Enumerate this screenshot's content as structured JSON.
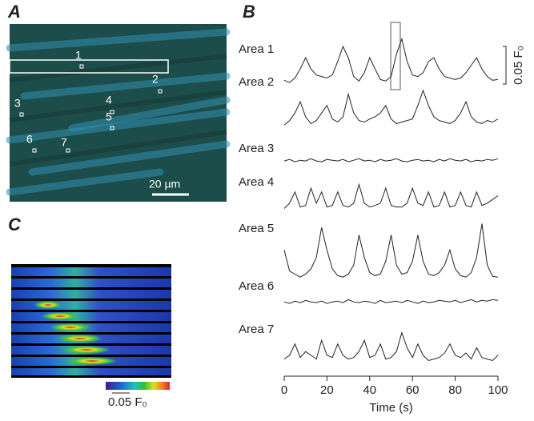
{
  "panels": {
    "a": {
      "label": "A",
      "rois": [
        "1",
        "2",
        "3",
        "4",
        "5",
        "6",
        "7"
      ],
      "scale_bar": "20 µm"
    },
    "b": {
      "label": "B"
    },
    "c": {
      "label": "C",
      "colorbar_label": "0.05 F₀"
    }
  },
  "chart_data": {
    "type": "line",
    "color": "#222",
    "x": [
      0,
      2.5,
      5,
      7.5,
      10,
      12.5,
      15,
      17.5,
      20,
      22.5,
      25,
      27.5,
      30,
      32.5,
      35,
      37.5,
      40,
      42.5,
      45,
      47.5,
      50,
      52.5,
      55,
      57.5,
      60,
      62.5,
      65,
      67.5,
      70,
      72.5,
      75,
      77.5,
      80,
      82.5,
      85,
      87.5,
      90,
      92.5,
      95,
      97.5,
      100
    ],
    "series": [
      {
        "name": "Area 1",
        "values": [
          0.005,
          0.002,
          0.008,
          0.02,
          0.035,
          0.02,
          0.012,
          0.01,
          0.008,
          0.012,
          0.03,
          0.05,
          0.035,
          0.01,
          0.004,
          0.015,
          0.035,
          0.02,
          0.006,
          0.004,
          0.01,
          0.04,
          0.06,
          0.03,
          0.012,
          0.01,
          0.015,
          0.03,
          0.035,
          0.02,
          0.01,
          0.008,
          0.006,
          0.008,
          0.015,
          0.025,
          0.035,
          0.02,
          0.01,
          0.005,
          0.006
        ]
      },
      {
        "name": "Area 2",
        "values": [
          0.004,
          0.01,
          0.02,
          0.035,
          0.015,
          0.006,
          0.01,
          0.02,
          0.03,
          0.012,
          0.008,
          0.015,
          0.045,
          0.02,
          0.01,
          0.008,
          0.012,
          0.015,
          0.02,
          0.03,
          0.012,
          0.006,
          0.008,
          0.01,
          0.012,
          0.03,
          0.05,
          0.03,
          0.015,
          0.01,
          0.008,
          0.006,
          0.01,
          0.02,
          0.035,
          0.015,
          0.008,
          0.006,
          0.01,
          0.008,
          0.012
        ]
      },
      {
        "name": "Area 3",
        "values": [
          0.002,
          0.004,
          0.001,
          0.003,
          0.002,
          0.005,
          0.002,
          0.001,
          0.004,
          0.003,
          0.002,
          0.004,
          0.001,
          0.003,
          0.005,
          0.002,
          0.003,
          0.001,
          0.004,
          0.002,
          0.003,
          0.005,
          0.002,
          0.001,
          0.003,
          0.004,
          0.002,
          0.003,
          0.001,
          0.004,
          0.002,
          0.005,
          0.003,
          0.002,
          0.004,
          0.001,
          0.003,
          0.002,
          0.004,
          0.003,
          0.005
        ]
      },
      {
        "name": "Area 4",
        "values": [
          0.008,
          0.015,
          0.03,
          0.01,
          0.012,
          0.035,
          0.015,
          0.03,
          0.01,
          0.012,
          0.03,
          0.012,
          0.01,
          0.015,
          0.04,
          0.015,
          0.01,
          0.012,
          0.015,
          0.035,
          0.012,
          0.01,
          0.01,
          0.015,
          0.035,
          0.015,
          0.012,
          0.03,
          0.01,
          0.012,
          0.03,
          0.01,
          0.012,
          0.03,
          0.012,
          0.01,
          0.03,
          0.012,
          0.015,
          0.02,
          0.025
        ]
      },
      {
        "name": "Area 5",
        "values": [
          0.04,
          0.012,
          0.008,
          0.004,
          0.008,
          0.015,
          0.03,
          0.07,
          0.04,
          0.015,
          0.006,
          0.004,
          0.008,
          0.02,
          0.06,
          0.03,
          0.01,
          0.006,
          0.008,
          0.025,
          0.06,
          0.02,
          0.008,
          0.01,
          0.025,
          0.06,
          0.025,
          0.008,
          0.006,
          0.01,
          0.02,
          0.04,
          0.015,
          0.006,
          0.004,
          0.01,
          0.03,
          0.075,
          0.02,
          0.005,
          0.004
        ]
      },
      {
        "name": "Area 6",
        "values": [
          0.003,
          0.001,
          0.004,
          0.002,
          0.005,
          0.003,
          0.002,
          0.004,
          0.001,
          0.003,
          0.004,
          0.002,
          0.006,
          0.003,
          0.002,
          0.004,
          0.003,
          0.001,
          0.005,
          0.002,
          0.003,
          0.004,
          0.002,
          0.005,
          0.003,
          0.001,
          0.004,
          0.002,
          0.003,
          0.005,
          0.004,
          0.003,
          0.005,
          0.002,
          0.004,
          0.006,
          0.003,
          0.005,
          0.004,
          0.006,
          0.005
        ]
      },
      {
        "name": "Area 7",
        "values": [
          0.01,
          0.015,
          0.03,
          0.012,
          0.02,
          0.015,
          0.01,
          0.035,
          0.015,
          0.012,
          0.03,
          0.015,
          0.01,
          0.012,
          0.02,
          0.035,
          0.012,
          0.015,
          0.03,
          0.01,
          0.012,
          0.02,
          0.045,
          0.025,
          0.012,
          0.03,
          0.015,
          0.008,
          0.01,
          0.012,
          0.018,
          0.03,
          0.015,
          0.012,
          0.018,
          0.01,
          0.025,
          0.012,
          0.01,
          0.008,
          0.015
        ]
      }
    ],
    "xlim": [
      0,
      100
    ],
    "xticks": [
      0,
      20,
      40,
      60,
      80,
      100
    ],
    "x_label": "Time (s)",
    "scale_bar_value": 0.05,
    "scale_bar_label": "0.05 F₀"
  }
}
